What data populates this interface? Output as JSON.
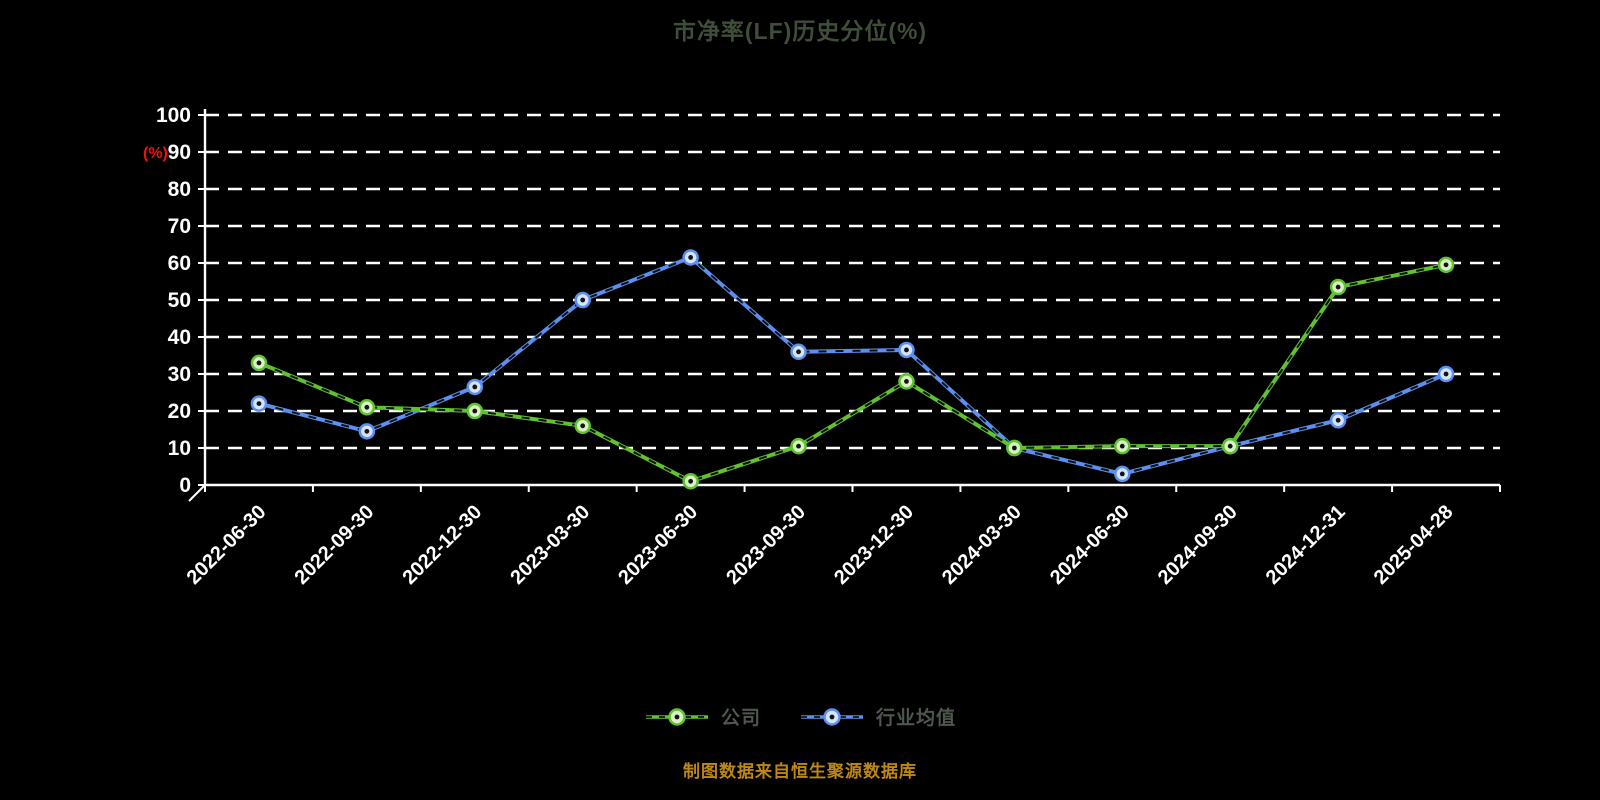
{
  "title": "市净率(LF)历史分位(%)",
  "y_axis_unit": "(%)",
  "footer": "制图数据来自恒生聚源数据库",
  "colors": {
    "background": "#000000",
    "grid": "#ffffff",
    "axis": "#ffffff",
    "tick_text": "#ffffff",
    "title_text": "#3f4e38",
    "unit_text": "#ee1111",
    "legend_text": "#4e564e",
    "footer_text": "#bd8715"
  },
  "chart_data": {
    "type": "line",
    "title": "市净率(LF)历史分位(%)",
    "ylabel": "(%)",
    "ylim": [
      0,
      100
    ],
    "yticks": [
      0,
      10,
      20,
      30,
      40,
      50,
      60,
      70,
      80,
      90,
      100
    ],
    "grid": "horizontal dashed white on black",
    "legend_position": "bottom center",
    "categories": [
      "2022-06-30",
      "2022-09-30",
      "2022-12-30",
      "2023-03-30",
      "2023-06-30",
      "2023-09-30",
      "2023-12-30",
      "2024-03-30",
      "2024-06-30",
      "2024-09-30",
      "2024-12-31",
      "2025-04-28"
    ],
    "series": [
      {
        "name": "公司",
        "color": "#5fc22e",
        "marker_fill": "#d9f3c4",
        "values": [
          33,
          21,
          20,
          16,
          1,
          10.5,
          28,
          10,
          10.5,
          10.5,
          53.5,
          59.5
        ]
      },
      {
        "name": "行业均值",
        "color": "#5b8ff0",
        "marker_fill": "#d6e4fb",
        "values": [
          22,
          14.5,
          26.5,
          50,
          61.5,
          36,
          36.5,
          10,
          3,
          10.5,
          17.5,
          30
        ]
      }
    ]
  }
}
